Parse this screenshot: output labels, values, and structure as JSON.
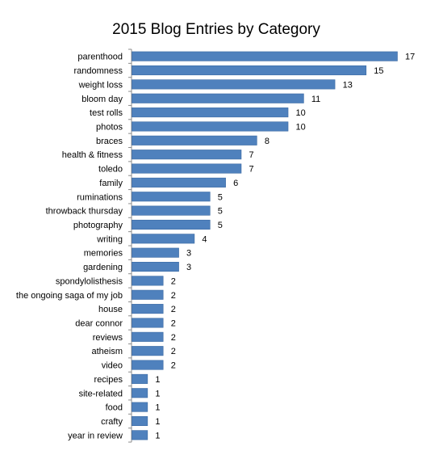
{
  "chart_data": {
    "type": "bar",
    "orientation": "horizontal",
    "title": "2015 Blog Entries by Category",
    "xlabel": "",
    "ylabel": "",
    "xlim": [
      0,
      17
    ],
    "grid": false,
    "legend": "none",
    "bar_color": "#4f81bd",
    "categories": [
      "parenthood",
      "randomness",
      "weight loss",
      "bloom day",
      "test rolls",
      "photos",
      "braces",
      "health & fitness",
      "toledo",
      "family",
      "ruminations",
      "throwback thursday",
      "photography",
      "writing",
      "memories",
      "gardening",
      "spondylolisthesis",
      "the ongoing saga of my job",
      "house",
      "dear connor",
      "reviews",
      "atheism",
      "video",
      "recipes",
      "site-related",
      "food",
      "crafty",
      "year in review"
    ],
    "values": [
      17,
      15,
      13,
      11,
      10,
      10,
      8,
      7,
      7,
      6,
      5,
      5,
      5,
      4,
      3,
      3,
      2,
      2,
      2,
      2,
      2,
      2,
      2,
      1,
      1,
      1,
      1,
      1
    ]
  }
}
